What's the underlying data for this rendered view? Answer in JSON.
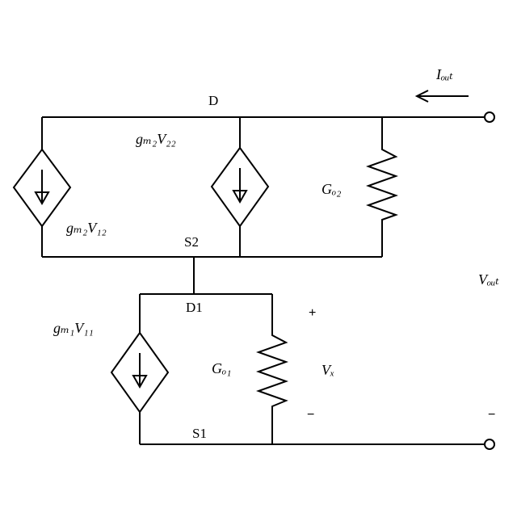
{
  "labels": {
    "node_top": "D",
    "node_mid": "S2",
    "node_mid2": "D1",
    "node_bottom": "S1",
    "src_top_left": "gₘ₂V₁₂",
    "src_top_mid": "gₘ₂V₂₂",
    "res_top": "Gₒ₂",
    "src_bottom": "gₘ₁V₁₁",
    "res_bottom": "Gₒ₁",
    "vx": "Vₓ",
    "iout": "Iₒᵤₜ",
    "vout": "Vₒᵤₜ",
    "plus1": "+",
    "minus1": "−",
    "minus2": "−"
  }
}
